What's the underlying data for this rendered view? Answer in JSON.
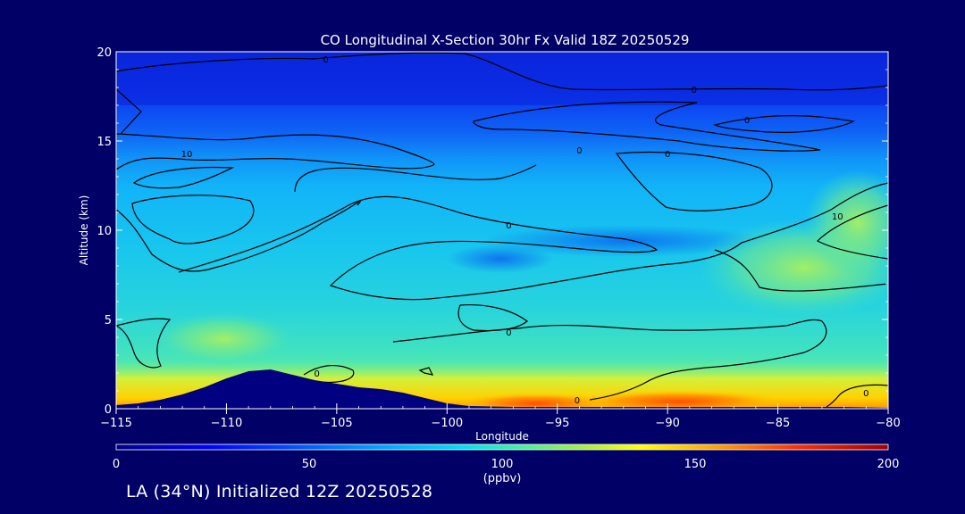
{
  "chart_data": {
    "type": "heatmap",
    "title": "CO Longitudinal X-Section 30hr  Fx Valid 18Z 20250529",
    "xlabel": "Longitude",
    "ylabel": "Altitude (km)",
    "xlim": [
      -115,
      -80
    ],
    "ylim": [
      0,
      20
    ],
    "x_ticks": [
      -115,
      -110,
      -105,
      -100,
      -95,
      -90,
      -85,
      -80
    ],
    "x_tick_labels": [
      "−115",
      "−110",
      "−105",
      "−100",
      "−95",
      "−90",
      "−85",
      "−80"
    ],
    "y_ticks": [
      0,
      5,
      10,
      15,
      20
    ],
    "y_tick_labels": [
      "0",
      "5",
      "10",
      "15",
      "20"
    ],
    "units": "(ppbv)",
    "colorbar": {
      "min": 0,
      "max": 200,
      "ticks": [
        0,
        50,
        100,
        150,
        200
      ],
      "tick_labels": [
        "0",
        "50",
        "100",
        "150",
        "200"
      ],
      "colors": [
        "#000080",
        "#0000ff",
        "#0080ff",
        "#00c0ff",
        "#00e6e6",
        "#40f0a0",
        "#a0f040",
        "#ffff00",
        "#ffa000",
        "#ff3000",
        "#a00000"
      ]
    },
    "contour_labels": [
      {
        "text": "0",
        "lon": -105.5,
        "alt": 19.6
      },
      {
        "text": "0",
        "lon": -88.8,
        "alt": 17.9
      },
      {
        "text": "0",
        "lon": -86.4,
        "alt": 16.2
      },
      {
        "text": "10",
        "lon": -111.8,
        "alt": 14.3
      },
      {
        "text": "0",
        "lon": -94.0,
        "alt": 14.5
      },
      {
        "text": "0",
        "lon": -90.0,
        "alt": 14.3
      },
      {
        "text": "10",
        "lon": -82.3,
        "alt": 10.8
      },
      {
        "text": "0",
        "lon": -97.2,
        "alt": 10.3
      },
      {
        "text": "0",
        "lon": -97.2,
        "alt": 4.3
      },
      {
        "text": "0",
        "lon": -105.9,
        "alt": 2.0
      },
      {
        "text": "0",
        "lon": -94.1,
        "alt": 0.5
      },
      {
        "text": "0",
        "lon": -81.0,
        "alt": 0.9
      }
    ],
    "terrain_km": [
      [
        -115,
        0.2
      ],
      [
        -114,
        0.3
      ],
      [
        -113,
        0.5
      ],
      [
        -112,
        0.8
      ],
      [
        -111,
        1.2
      ],
      [
        -110,
        1.7
      ],
      [
        -109,
        2.1
      ],
      [
        -108,
        2.2
      ],
      [
        -107,
        1.9
      ],
      [
        -106,
        1.6
      ],
      [
        -105,
        1.4
      ],
      [
        -104,
        1.2
      ],
      [
        -103,
        1.1
      ],
      [
        -102,
        0.9
      ],
      [
        -101,
        0.6
      ],
      [
        -100,
        0.3
      ],
      [
        -99,
        0.15
      ],
      [
        -97,
        0.1
      ],
      [
        -95,
        0.1
      ],
      [
        -90,
        0.1
      ],
      [
        -85,
        0.1
      ],
      [
        -82,
        0.1
      ],
      [
        -80,
        0.05
      ]
    ]
  },
  "footer": {
    "caption": "LA (34°N) Initialized 12Z 20250528"
  }
}
